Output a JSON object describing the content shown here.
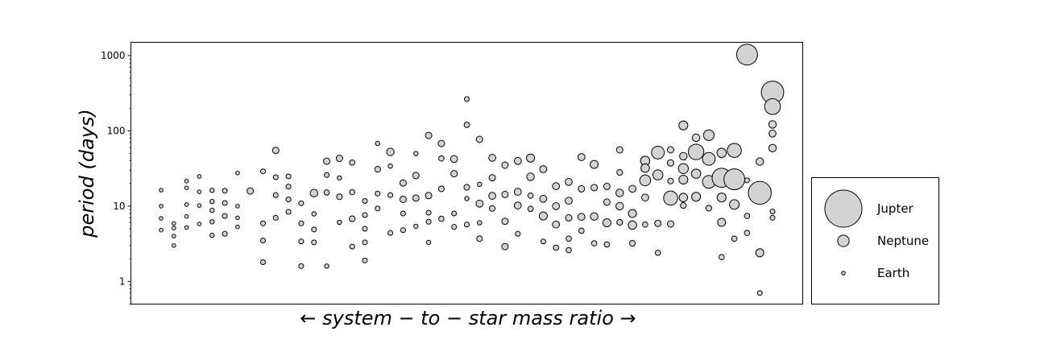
{
  "chart_data": {
    "type": "scatter",
    "title": "",
    "xlabel": "←  system − to − star mass ratio  →",
    "ylabel": "period (days)",
    "yscale": "log",
    "ylim": [
      0.5,
      1500
    ],
    "yticks": [
      1,
      10,
      100,
      1000
    ],
    "ytick_labels": [
      "1",
      "10",
      "100",
      "1000"
    ],
    "xticks": "none",
    "grid": false,
    "legend_position": "outside-right",
    "marker_fill": "#d3d3d3",
    "marker_edge": "#000000",
    "legend": [
      {
        "label": "Jupter",
        "mass_earth": 317.8
      },
      {
        "label": "Neptune",
        "mass_earth": 17.1
      },
      {
        "label": "Earth",
        "mass_earth": 1.0
      }
    ],
    "systems": [
      {
        "planets": [
          {
            "p": 16.3,
            "m": 1
          },
          {
            "p": 10.0,
            "m": 1
          },
          {
            "p": 6.9,
            "m": 1
          },
          {
            "p": 4.8,
            "m": 1
          }
        ]
      },
      {
        "planets": [
          {
            "p": 5.9,
            "m": 1
          },
          {
            "p": 5.1,
            "m": 1
          },
          {
            "p": 4.0,
            "m": 1
          },
          {
            "p": 3.0,
            "m": 1
          }
        ]
      },
      {
        "planets": [
          {
            "p": 21.5,
            "m": 1
          },
          {
            "p": 17.5,
            "m": 1
          },
          {
            "p": 10.5,
            "m": 1
          },
          {
            "p": 7.3,
            "m": 1
          },
          {
            "p": 5.2,
            "m": 1
          }
        ]
      },
      {
        "planets": [
          {
            "p": 24.8,
            "m": 1
          },
          {
            "p": 15.5,
            "m": 1
          },
          {
            "p": 10.2,
            "m": 1
          },
          {
            "p": 5.8,
            "m": 1
          }
        ]
      },
      {
        "planets": [
          {
            "p": 16.2,
            "m": 1.5
          },
          {
            "p": 11.5,
            "m": 1.5
          },
          {
            "p": 8.8,
            "m": 1.5
          },
          {
            "p": 6.2,
            "m": 1.5
          },
          {
            "p": 4.1,
            "m": 1.5
          }
        ]
      },
      {
        "planets": [
          {
            "p": 16.0,
            "m": 2
          },
          {
            "p": 11.0,
            "m": 2
          },
          {
            "p": 7.4,
            "m": 2
          },
          {
            "p": 4.3,
            "m": 2
          }
        ]
      },
      {
        "planets": [
          {
            "p": 27.5,
            "m": 1
          },
          {
            "p": 10.0,
            "m": 1
          },
          {
            "p": 7.0,
            "m": 1
          },
          {
            "p": 5.3,
            "m": 1
          }
        ]
      },
      {
        "planets": [
          {
            "p": 15.9,
            "m": 4
          }
        ]
      },
      {
        "planets": [
          {
            "p": 28.9,
            "m": 2
          },
          {
            "p": 5.9,
            "m": 2
          },
          {
            "p": 3.5,
            "m": 2
          },
          {
            "p": 1.8,
            "m": 2
          }
        ]
      },
      {
        "planets": [
          {
            "p": 55.0,
            "m": 4
          },
          {
            "p": 24.2,
            "m": 2
          },
          {
            "p": 14.0,
            "m": 2
          },
          {
            "p": 7.0,
            "m": 2
          }
        ]
      },
      {
        "planets": [
          {
            "p": 24.8,
            "m": 2
          },
          {
            "p": 18.2,
            "m": 2
          },
          {
            "p": 12.3,
            "m": 2
          },
          {
            "p": 8.4,
            "m": 2
          }
        ]
      },
      {
        "planets": [
          {
            "p": 10.9,
            "m": 2
          },
          {
            "p": 5.9,
            "m": 2
          },
          {
            "p": 3.4,
            "m": 2
          },
          {
            "p": 1.6,
            "m": 2
          }
        ]
      },
      {
        "planets": [
          {
            "p": 14.9,
            "m": 6
          },
          {
            "p": 7.9,
            "m": 1.5
          },
          {
            "p": 4.9,
            "m": 2
          },
          {
            "p": 3.3,
            "m": 2
          }
        ]
      },
      {
        "planets": [
          {
            "p": 39.5,
            "m": 4
          },
          {
            "p": 25.9,
            "m": 2
          },
          {
            "p": 15.2,
            "m": 2.5
          },
          {
            "p": 1.6,
            "m": 1.5
          }
        ]
      },
      {
        "planets": [
          {
            "p": 43.2,
            "m": 4
          },
          {
            "p": 23.7,
            "m": 1.5
          },
          {
            "p": 13.3,
            "m": 3
          },
          {
            "p": 6.1,
            "m": 1.5
          }
        ]
      },
      {
        "planets": [
          {
            "p": 37.9,
            "m": 2.5
          },
          {
            "p": 15.3,
            "m": 2.5
          },
          {
            "p": 6.8,
            "m": 3
          },
          {
            "p": 2.9,
            "m": 2
          }
        ]
      },
      {
        "planets": [
          {
            "p": 11.7,
            "m": 2
          },
          {
            "p": 7.6,
            "m": 2
          },
          {
            "p": 5.0,
            "m": 2
          },
          {
            "p": 3.3,
            "m": 2
          },
          {
            "p": 1.9,
            "m": 2
          }
        ]
      },
      {
        "planets": [
          {
            "p": 68.0,
            "m": 1.5
          },
          {
            "p": 30.9,
            "m": 3
          },
          {
            "p": 14.7,
            "m": 2
          },
          {
            "p": 9.3,
            "m": 2
          }
        ]
      },
      {
        "planets": [
          {
            "p": 52.5,
            "m": 6
          },
          {
            "p": 34.0,
            "m": 1.5
          },
          {
            "p": 14.0,
            "m": 2
          },
          {
            "p": 4.4,
            "m": 2
          }
        ]
      },
      {
        "planets": [
          {
            "p": 20.3,
            "m": 4
          },
          {
            "p": 12.3,
            "m": 4
          },
          {
            "p": 8.0,
            "m": 2
          },
          {
            "p": 4.8,
            "m": 2
          }
        ]
      },
      {
        "planets": [
          {
            "p": 50.0,
            "m": 1.5
          },
          {
            "p": 25.5,
            "m": 4
          },
          {
            "p": 12.8,
            "m": 4
          },
          {
            "p": 5.4,
            "m": 1.5
          }
        ]
      },
      {
        "planets": [
          {
            "p": 87.0,
            "m": 4
          },
          {
            "p": 13.8,
            "m": 4
          },
          {
            "p": 8.2,
            "m": 2
          },
          {
            "p": 6.2,
            "m": 2
          },
          {
            "p": 3.3,
            "m": 1.5
          }
        ]
      },
      {
        "planets": [
          {
            "p": 68.0,
            "m": 4
          },
          {
            "p": 43.0,
            "m": 2.5
          },
          {
            "p": 17.0,
            "m": 3
          },
          {
            "p": 6.8,
            "m": 2.5
          }
        ]
      },
      {
        "planets": [
          {
            "p": 42.3,
            "m": 5
          },
          {
            "p": 27.0,
            "m": 4
          },
          {
            "p": 8.0,
            "m": 2
          },
          {
            "p": 5.3,
            "m": 2
          }
        ]
      },
      {
        "planets": [
          {
            "p": 264.0,
            "m": 2
          },
          {
            "p": 120.0,
            "m": 2.5
          },
          {
            "p": 17.8,
            "m": 3
          },
          {
            "p": 12.6,
            "m": 1.5
          },
          {
            "p": 5.7,
            "m": 2
          }
        ]
      },
      {
        "planets": [
          {
            "p": 77.0,
            "m": 4
          },
          {
            "p": 19.5,
            "m": 1.5
          },
          {
            "p": 10.8,
            "m": 5
          },
          {
            "p": 6.0,
            "m": 1.5
          },
          {
            "p": 3.7,
            "m": 3
          }
        ]
      },
      {
        "planets": [
          {
            "p": 43.8,
            "m": 5
          },
          {
            "p": 23.8,
            "m": 4
          },
          {
            "p": 13.7,
            "m": 5
          },
          {
            "p": 9.3,
            "m": 3
          }
        ]
      },
      {
        "planets": [
          {
            "p": 35.0,
            "m": 4
          },
          {
            "p": 14.3,
            "m": 4
          },
          {
            "p": 6.3,
            "m": 4
          },
          {
            "p": 2.9,
            "m": 4
          }
        ]
      },
      {
        "planets": [
          {
            "p": 39.8,
            "m": 5
          },
          {
            "p": 15.5,
            "m": 5
          },
          {
            "p": 10.2,
            "m": 5
          },
          {
            "p": 4.3,
            "m": 2
          }
        ]
      },
      {
        "planets": [
          {
            "p": 43.5,
            "m": 7
          },
          {
            "p": 24.5,
            "m": 6
          },
          {
            "p": 13.8,
            "m": 2.5
          },
          {
            "p": 9.2,
            "m": 2.5
          }
        ]
      },
      {
        "planets": [
          {
            "p": 31.0,
            "m": 5
          },
          {
            "p": 12.5,
            "m": 5
          },
          {
            "p": 7.4,
            "m": 7
          },
          {
            "p": 3.4,
            "m": 2
          }
        ]
      },
      {
        "planets": [
          {
            "p": 18.4,
            "m": 5
          },
          {
            "p": 10.0,
            "m": 5
          },
          {
            "p": 5.7,
            "m": 5
          },
          {
            "p": 2.8,
            "m": 2.5
          }
        ]
      },
      {
        "planets": [
          {
            "p": 21.0,
            "m": 5
          },
          {
            "p": 11.8,
            "m": 5
          },
          {
            "p": 7.0,
            "m": 4
          },
          {
            "p": 3.7,
            "m": 2.5
          },
          {
            "p": 2.6,
            "m": 2.5
          }
        ]
      },
      {
        "planets": [
          {
            "p": 44.8,
            "m": 5
          },
          {
            "p": 17.0,
            "m": 4
          },
          {
            "p": 7.2,
            "m": 5
          },
          {
            "p": 4.7,
            "m": 2.5
          }
        ]
      },
      {
        "planets": [
          {
            "p": 35.8,
            "m": 7
          },
          {
            "p": 17.6,
            "m": 4
          },
          {
            "p": 7.3,
            "m": 6
          },
          {
            "p": 3.2,
            "m": 2.5
          }
        ]
      },
      {
        "planets": [
          {
            "p": 18.3,
            "m": 4
          },
          {
            "p": 11.3,
            "m": 4
          },
          {
            "p": 6.0,
            "m": 7
          },
          {
            "p": 3.1,
            "m": 2.5
          }
        ]
      },
      {
        "planets": [
          {
            "p": 56.0,
            "m": 4
          },
          {
            "p": 28.0,
            "m": 3
          },
          {
            "p": 15.0,
            "m": 6
          },
          {
            "p": 10.0,
            "m": 6
          },
          {
            "p": 6.1,
            "m": 3
          }
        ]
      },
      {
        "planets": [
          {
            "p": 17.0,
            "m": 5
          },
          {
            "p": 8.0,
            "m": 7
          },
          {
            "p": 5.6,
            "m": 8
          },
          {
            "p": 3.2,
            "m": 3
          }
        ]
      },
      {
        "planets": [
          {
            "p": 40.0,
            "m": 10
          },
          {
            "p": 32.0,
            "m": 8
          },
          {
            "p": 22.0,
            "m": 15
          },
          {
            "p": 13.0,
            "m": 5
          },
          {
            "p": 5.7,
            "m": 2.5
          }
        ]
      },
      {
        "planets": [
          {
            "p": 51.5,
            "m": 22
          },
          {
            "p": 26.0,
            "m": 12
          },
          {
            "p": 5.9,
            "m": 4
          },
          {
            "p": 2.4,
            "m": 2.5
          }
        ]
      },
      {
        "planets": [
          {
            "p": 56.0,
            "m": 4
          },
          {
            "p": 37.5,
            "m": 4
          },
          {
            "p": 21.5,
            "m": 3
          },
          {
            "p": 12.8,
            "m": 28
          },
          {
            "p": 5.8,
            "m": 4
          }
        ]
      },
      {
        "planets": [
          {
            "p": 118.0,
            "m": 9
          },
          {
            "p": 46.0,
            "m": 6
          },
          {
            "p": 31.5,
            "m": 12
          },
          {
            "p": 22.5,
            "m": 9
          },
          {
            "p": 13.0,
            "m": 8
          },
          {
            "p": 10.2,
            "m": 3
          }
        ]
      },
      {
        "planets": [
          {
            "p": 81.0,
            "m": 6
          },
          {
            "p": 52.5,
            "m": 36
          },
          {
            "p": 27.0,
            "m": 10
          },
          {
            "p": 13.3,
            "m": 9
          }
        ]
      },
      {
        "planets": [
          {
            "p": 87.5,
            "m": 14
          },
          {
            "p": 42.5,
            "m": 22
          },
          {
            "p": 21.0,
            "m": 22
          },
          {
            "p": 9.4,
            "m": 3
          }
        ]
      },
      {
        "planets": [
          {
            "p": 51.0,
            "m": 10
          },
          {
            "p": 23.8,
            "m": 60
          },
          {
            "p": 13.0,
            "m": 9
          },
          {
            "p": 6.1,
            "m": 7
          },
          {
            "p": 2.1,
            "m": 2.5
          }
        ]
      },
      {
        "planets": [
          {
            "p": 55.0,
            "m": 28
          },
          {
            "p": 22.7,
            "m": 75
          },
          {
            "p": 10.5,
            "m": 11
          },
          {
            "p": 3.7,
            "m": 2.5
          }
        ]
      },
      {
        "planets": [
          {
            "p": 1030.0,
            "m": 75
          },
          {
            "p": 22.0,
            "m": 2
          },
          {
            "p": 7.4,
            "m": 2.5
          },
          {
            "p": 4.4,
            "m": 2.5
          }
        ]
      },
      {
        "planets": [
          {
            "p": 39.0,
            "m": 6
          },
          {
            "p": 15.0,
            "m": 95
          },
          {
            "p": 2.4,
            "m": 7
          },
          {
            "p": 0.7,
            "m": 2
          }
        ]
      },
      {
        "planets": [
          {
            "p": 325.0,
            "m": 90
          },
          {
            "p": 210.0,
            "m": 38
          },
          {
            "p": 122.0,
            "m": 6
          },
          {
            "p": 92.0,
            "m": 5
          },
          {
            "p": 59.0,
            "m": 6
          },
          {
            "p": 8.5,
            "m": 2
          },
          {
            "p": 7.0,
            "m": 2
          }
        ]
      }
    ]
  }
}
